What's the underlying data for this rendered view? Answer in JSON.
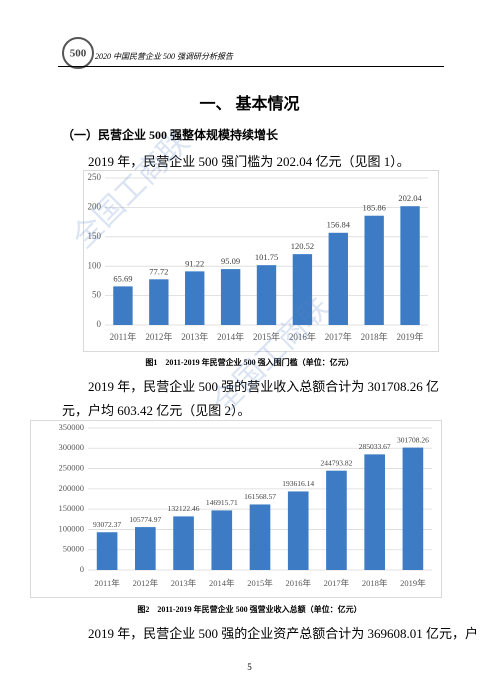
{
  "header": {
    "logo_text": "500",
    "title": "2020 中国民营企业 500 强调研分析报告"
  },
  "heading": "一、 基本情况",
  "subheading": "（一）民营企业 500 强整体规模持续增长",
  "watermark": "全国工商联",
  "paragraphs": [
    "2019 年，民营企业 500 强门槛为 202.04 亿元（见图 1）。",
    "2019 年，民营企业 500 强的营业收入总额合计为 301708.26 亿元，户均 603.42 亿元（见图 2）。",
    "2019 年，民营企业 500 强的企业资产总额合计为 369608.01 亿元，户"
  ],
  "page_number": "5",
  "chart_data": [
    {
      "type": "bar",
      "title": "图1　2011-2019 年民营企业 500 强入围门槛（单位：亿元）",
      "categories": [
        "2011年",
        "2012年",
        "2013年",
        "2014年",
        "2015年",
        "2016年",
        "2017年",
        "2018年",
        "2019年"
      ],
      "values": [
        65.69,
        77.72,
        91.22,
        95.09,
        101.75,
        120.52,
        156.84,
        185.86,
        202.04
      ],
      "color": "#3d7cc4",
      "ylim": [
        0,
        250
      ],
      "yticks": [
        0,
        50,
        100,
        150,
        200,
        250
      ],
      "grid": true
    },
    {
      "type": "bar",
      "title": "图2　2011-2019 年民营企业 500 强营业收入总额（单位：亿元）",
      "categories": [
        "2011年",
        "2012年",
        "2013年",
        "2014年",
        "2015年",
        "2016年",
        "2017年",
        "2018年",
        "2019年"
      ],
      "values": [
        93072.37,
        105774.97,
        132122.46,
        146915.71,
        161568.57,
        193616.14,
        244793.82,
        285033.67,
        301708.26
      ],
      "color": "#3d7cc4",
      "ylim": [
        0,
        350000
      ],
      "yticks": [
        0,
        50000,
        100000,
        150000,
        200000,
        250000,
        300000,
        350000
      ],
      "grid": true
    }
  ]
}
